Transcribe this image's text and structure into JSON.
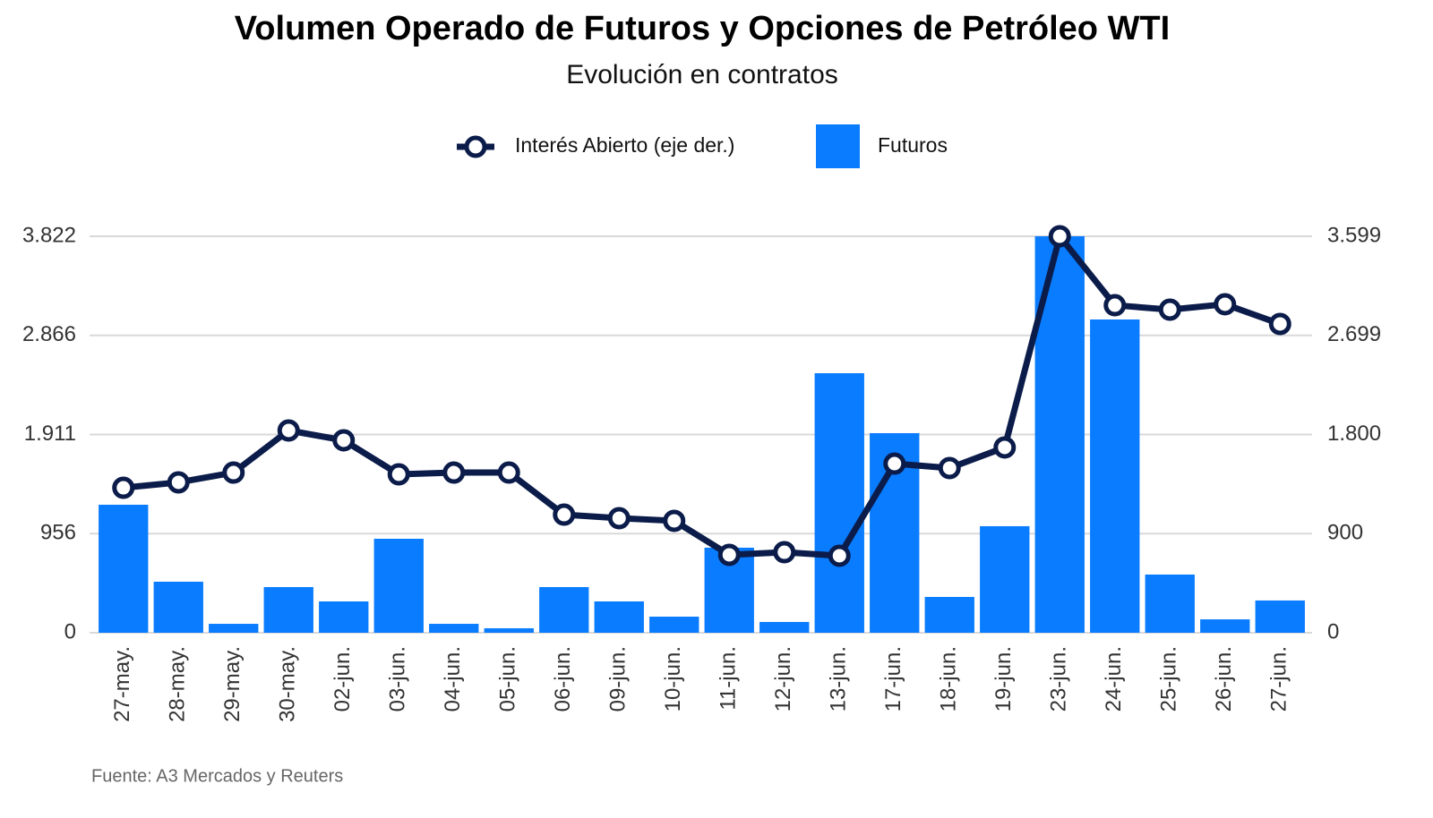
{
  "chart_data": {
    "type": "bar",
    "title": "Volumen Operado de Futuros y Opciones de Petróleo WTI",
    "subtitle": "Evolución en contratos",
    "source": "Fuente: A3 Mercados y Reuters",
    "categories": [
      "27-may.",
      "28-may.",
      "29-may.",
      "30-may.",
      "02-jun.",
      "03-jun.",
      "04-jun.",
      "05-jun.",
      "06-jun.",
      "09-jun.",
      "10-jun.",
      "11-jun.",
      "12-jun.",
      "13-jun.",
      "17-jun.",
      "18-jun.",
      "19-jun.",
      "23-jun.",
      "24-jun.",
      "25-jun.",
      "26-jun.",
      "27-jun."
    ],
    "series": [
      {
        "name": "Interés Abierto (eje der.)",
        "type": "line",
        "axis": "y2",
        "color": "#0b1c4a",
        "values": [
          1316,
          1365,
          1454,
          1836,
          1747,
          1438,
          1454,
          1454,
          1072,
          1040,
          1016,
          707,
          731,
          699,
          1535,
          1495,
          1682,
          3599,
          2973,
          2933,
          2982,
          2803
        ]
      },
      {
        "name": "Futuros",
        "type": "bar",
        "color": "#0a7cff",
        "values": [
          1234,
          492,
          86,
          440,
          302,
          906,
          86,
          43,
          440,
          302,
          155,
          820,
          104,
          2502,
          1924,
          345,
          1027,
          3822,
          3020,
          561,
          129,
          311
        ]
      }
    ],
    "ylim": [
      0,
      3822
    ],
    "yticks": [
      0,
      {
        "value": 956,
        "label": "956"
      },
      {
        "value": 1911,
        "label": "1.911"
      },
      {
        "value": 2866,
        "label": "2.866"
      },
      {
        "value": 3822,
        "label": "3.822"
      }
    ],
    "y2lim": [
      0,
      3599
    ],
    "y2ticks": [
      0,
      900,
      {
        "value": 1800,
        "label": "1.800"
      },
      {
        "value": 2699,
        "label": "2.699"
      },
      {
        "value": 3599,
        "label": "3.599"
      }
    ],
    "grid": true
  }
}
